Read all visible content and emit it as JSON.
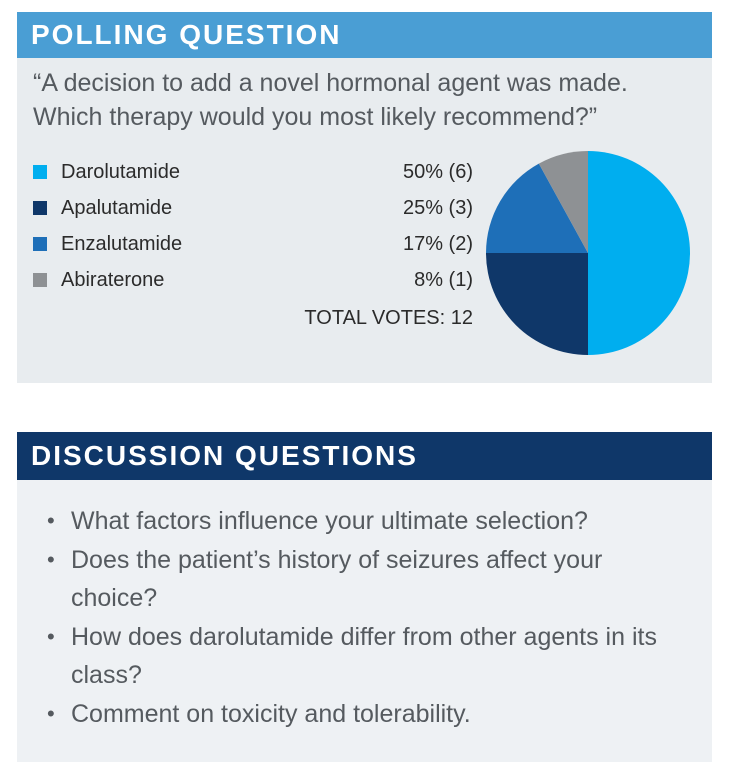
{
  "polling": {
    "header": "POLLING QUESTION",
    "question": "“A decision to add a novel hormonal agent was made. Which therapy would you most likely recommend?”",
    "total_votes_label": "TOTAL VOTES: 12"
  },
  "chart_data": {
    "type": "pie",
    "title": "",
    "series": [
      {
        "name": "Darolutamide",
        "value": 50,
        "count": 6,
        "value_label": "50% (6)",
        "color": "#00aeef"
      },
      {
        "name": "Apalutamide",
        "value": 25,
        "count": 3,
        "value_label": "25% (3)",
        "color": "#0f3769"
      },
      {
        "name": "Enzalutamide",
        "value": 17,
        "count": 2,
        "value_label": "17% (2)",
        "color": "#1e6fb8"
      },
      {
        "name": "Abiraterone",
        "value": 8,
        "count": 1,
        "value_label": "8% (1)",
        "color": "#8e9194"
      }
    ],
    "total": 12,
    "legend_position": "left"
  },
  "discussion": {
    "header": "DISCUSSION QUESTIONS",
    "bullet": "•",
    "items": [
      "What factors influence your ultimate selection?",
      "Does the patient’s history of seizures affect your choice?",
      "How does darolutamide differ from other agents in its class?",
      "Comment on toxicity and tolerability."
    ]
  }
}
